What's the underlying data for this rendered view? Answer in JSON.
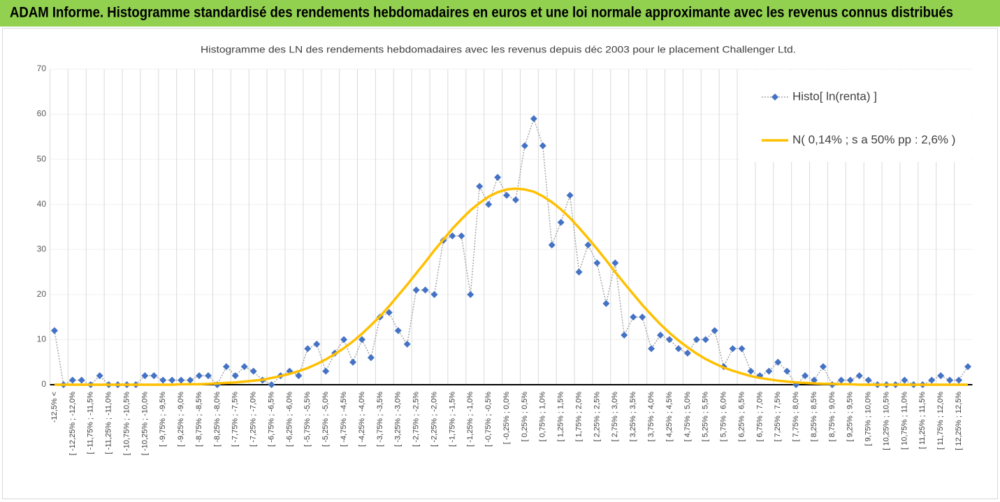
{
  "header": "ADAM Informe. Histogramme standardisé des rendements hebdomadaires en euros et une loi normale approximante avec les revenus connus distribués",
  "chart_data": {
    "type": "line",
    "title": "Histogramme  des LN des rendements hebdomadaires avec les revenus depuis déc 2003 pour le placement Challenger Ltd.",
    "categories": [
      "-12,5% <",
      null,
      "[ -12,25% ; -12,0%",
      null,
      "[ -11,75% ; -11,5%",
      null,
      "[ -11,25% ; -11,0%",
      null,
      "[ -10,75% ; -10,5%",
      null,
      "[ -10,25% ; -10,0%",
      null,
      "[ -9,75% ; -9,5%",
      null,
      "[ -9,25% ; -9,0%",
      null,
      "[ -8,75% ; -8,5%",
      null,
      "[ -8,25% ; -8,0%",
      null,
      "[ -7,75% ; -7,5%",
      null,
      "[ -7,25% ; -7,0%",
      null,
      "[ -6,75% ; -6,5%",
      null,
      "[ -6,25% ; -6,0%",
      null,
      "[ -5,75% ; -5,5%",
      null,
      "[ -5,25% ; -5,0%",
      null,
      "[ -4,75% ; -4,5%",
      null,
      "[ -4,25% ; -4,0%",
      null,
      "[ -3,75% ; -3,5%",
      null,
      "[ -3,25% ; -3,0%",
      null,
      "[ -2,75% ; -2,5%",
      null,
      "[ -2,25% ; -2,0%",
      null,
      "[ -1,75% ; -1,5%",
      null,
      "[ -1,25% ; -1,0%",
      null,
      "[ -0,75% ; -0,5%",
      null,
      "[ -0,25% ; 0,0%",
      null,
      "[ 0,25% ; 0,5%",
      null,
      "[ 0,75% ; 1,0%",
      null,
      "[ 1,25% ; 1,5%",
      null,
      "[ 1,75% ; 2,0%",
      null,
      "[ 2,25% ; 2,5%",
      null,
      "[ 2,75% ; 3,0%",
      null,
      "[ 3,25% ; 3,5%",
      null,
      "[ 3,75% ; 4,0%",
      null,
      "[ 4,25% ; 4,5%",
      null,
      "[ 4,75% ; 5,0%",
      null,
      "[ 5,25% ; 5,5%",
      null,
      "[ 5,75% ; 6,0%",
      null,
      "[ 6,25% ; 6,5%",
      null,
      "[ 6,75% ; 7,0%",
      null,
      "[ 7,25% ; 7,5%",
      null,
      "[ 7,75% ; 8,0%",
      null,
      "[ 8,25% ; 8,5%",
      null,
      "[ 8,75% ; 9,0%",
      null,
      "[ 9,25% ; 9,5%",
      null,
      "[ 9,75% ; 10,0%",
      null,
      "[ 10,25% ; 10,5%",
      null,
      "[ 10,75% ; 11,0%",
      null,
      "[ 11,25% ; 11,5%",
      null,
      "[ 11,75% ; 12,0%",
      null,
      "[ 12,25% ; 12,5%",
      null
    ],
    "series": [
      {
        "name": "Histo[ ln(renta) ]",
        "color": "#4472c4",
        "line_color": "#a6a6a6",
        "marker": "diamond",
        "values": [
          12,
          0,
          1,
          1,
          0,
          2,
          0,
          0,
          0,
          0,
          2,
          2,
          1,
          1,
          1,
          1,
          2,
          2,
          0,
          4,
          2,
          4,
          3,
          1,
          0,
          2,
          3,
          2,
          8,
          9,
          3,
          7,
          10,
          5,
          10,
          6,
          15,
          16,
          12,
          9,
          21,
          21,
          20,
          32,
          33,
          33,
          20,
          44,
          40,
          46,
          42,
          41,
          53,
          59,
          53,
          31,
          36,
          42,
          25,
          31,
          27,
          18,
          27,
          11,
          15,
          15,
          8,
          11,
          10,
          8,
          7,
          10,
          10,
          12,
          4,
          8,
          8,
          3,
          2,
          3,
          5,
          3,
          0,
          2,
          1,
          4,
          0,
          1,
          1,
          2,
          1,
          0,
          0,
          0,
          1,
          0,
          0,
          1,
          2,
          1,
          1,
          4
        ]
      },
      {
        "name": "N( 0,14% ; s a 50% pp : 2,6% )",
        "color": "#ffc000",
        "values": [
          0,
          0,
          0,
          0,
          0,
          0,
          0,
          0,
          0,
          0,
          0,
          0,
          0,
          0,
          0.1,
          0.1,
          0.1,
          0.2,
          0.3,
          0.4,
          0.5,
          0.7,
          0.9,
          1.1,
          1.5,
          1.9,
          2.4,
          3.0,
          3.7,
          4.6,
          5.6,
          6.8,
          8.1,
          9.6,
          11.3,
          13.2,
          15.2,
          17.4,
          19.8,
          22.2,
          24.7,
          27.2,
          29.8,
          32.2,
          34.6,
          36.7,
          38.7,
          40.3,
          41.7,
          42.7,
          43.3,
          43.5,
          43.3,
          42.8,
          41.8,
          40.5,
          38.9,
          37.0,
          34.8,
          32.5,
          30.1,
          27.6,
          25.0,
          22.5,
          20.1,
          17.7,
          15.5,
          13.4,
          11.5,
          9.8,
          8.3,
          6.9,
          5.7,
          4.7,
          3.8,
          3.1,
          2.5,
          1.9,
          1.5,
          1.2,
          0.9,
          0.7,
          0.5,
          0.4,
          0.3,
          0.2,
          0.2,
          0.1,
          0.1,
          0,
          0,
          0,
          0,
          0,
          0,
          0,
          0,
          0,
          0,
          0,
          0,
          0
        ]
      }
    ],
    "ylim": [
      0,
      70
    ],
    "yticks": [
      0,
      10,
      20,
      30,
      40,
      50,
      60,
      70
    ],
    "grid": true,
    "legend": "top-right"
  }
}
